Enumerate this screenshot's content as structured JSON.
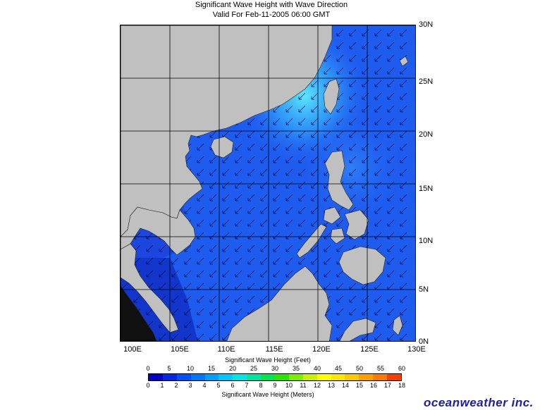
{
  "title": {
    "line1": "Significant Wave Height with Wave Direction",
    "line2": "Valid For Feb-11-2005 06:00 GMT"
  },
  "map": {
    "lon_range": [
      100,
      130
    ],
    "lat_range": [
      0,
      30
    ],
    "lat_labels": [
      "30N",
      "25N",
      "20N",
      "15N",
      "10N",
      "5N",
      "0N"
    ],
    "lon_labels": [
      "100E",
      "105E",
      "110E",
      "115E",
      "120E",
      "125E",
      "130E"
    ],
    "land_color": "#c0c0c0",
    "ocean_base_color": "#1e5cf0",
    "high_wave_color": "#4ad8ff",
    "arrow_direction": "southwest",
    "grid": true
  },
  "scale": {
    "feet_caption": "Significant Wave Height (Feet)",
    "meters_caption": "Significant Wave Height (Meters)",
    "feet_ticks": [
      "0",
      "5",
      "10",
      "15",
      "20",
      "25",
      "30",
      "35",
      "40",
      "45",
      "50",
      "55",
      "60"
    ],
    "meter_ticks": [
      "0",
      "1",
      "2",
      "3",
      "4",
      "5",
      "6",
      "7",
      "8",
      "9",
      "10",
      "11",
      "12",
      "13",
      "14",
      "15",
      "16",
      "17",
      "18"
    ],
    "colors": [
      "#0000c8",
      "#0028e6",
      "#0050ff",
      "#0078ff",
      "#00a0ff",
      "#00c8ff",
      "#00e6e6",
      "#00e6a0",
      "#00e650",
      "#28e600",
      "#78f000",
      "#c8f000",
      "#ffff00",
      "#ffe600",
      "#ffc800",
      "#ffa000",
      "#ff7800",
      "#ff3c00"
    ]
  },
  "brand": "oceanweather inc."
}
